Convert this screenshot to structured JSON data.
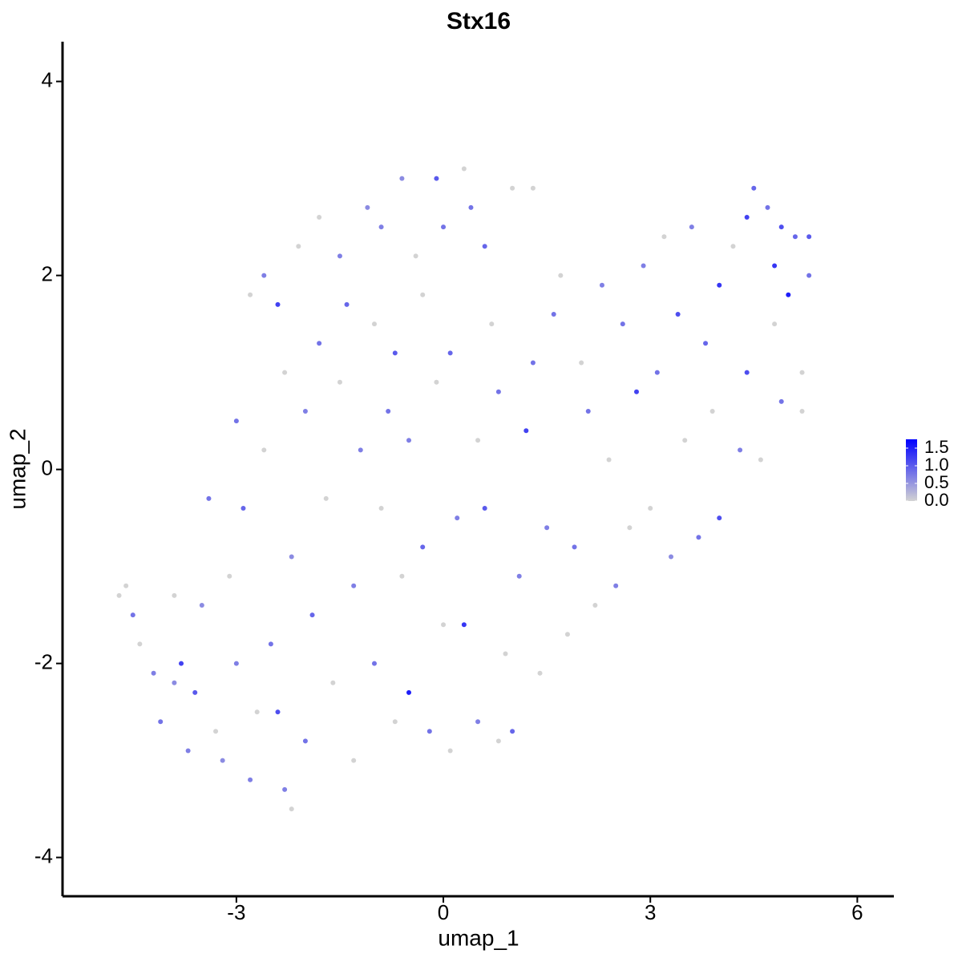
{
  "chart_data": {
    "type": "scatter",
    "title": "Stx16",
    "xlabel": "umap_1",
    "ylabel": "umap_2",
    "xlim": [
      -5.52,
      6.53
    ],
    "ylim": [
      -4.4,
      4.41
    ],
    "xticks": [
      -3,
      0,
      3,
      6
    ],
    "yticks": [
      -4,
      -2,
      0,
      2,
      4
    ],
    "low_color": "#d3d3d3",
    "high_color": "#0000ff",
    "color_lim": [
      0,
      1.75
    ],
    "color_ticks": [
      {
        "value": 0,
        "label": "0.0"
      },
      0.5,
      {
        "value": 1,
        "label": "1.0"
      },
      1.5
    ],
    "x": [
      -4.7,
      -4.6,
      -4.5,
      -4.4,
      -4.2,
      -4.1,
      -3.9,
      -3.8,
      -3.7,
      -3.6,
      -3.5,
      -3.4,
      -3.3,
      -3.2,
      -3.1,
      -3.0,
      -3.0,
      -2.9,
      -2.8,
      -2.8,
      -2.7,
      -2.6,
      -2.6,
      -2.5,
      -2.4,
      -2.4,
      -2.3,
      -2.3,
      -2.2,
      -2.2,
      -2.1,
      -2.0,
      -2.0,
      -1.9,
      -1.8,
      -1.8,
      -1.7,
      -1.6,
      -1.5,
      -1.5,
      -1.4,
      -1.3,
      -1.3,
      -1.2,
      -1.1,
      -1.0,
      -1.0,
      -0.9,
      -0.9,
      -0.8,
      -0.7,
      -0.7,
      -0.6,
      -0.6,
      -0.5,
      -0.5,
      -0.4,
      -0.3,
      -0.3,
      -0.2,
      -0.1,
      -0.1,
      0.0,
      0.0,
      0.1,
      0.1,
      0.2,
      0.3,
      0.3,
      0.4,
      0.5,
      0.5,
      0.6,
      0.6,
      0.7,
      0.8,
      0.8,
      0.9,
      1.0,
      1.0,
      1.1,
      1.2,
      1.3,
      1.4,
      1.5,
      1.6,
      1.7,
      1.8,
      1.9,
      2.0,
      2.1,
      2.2,
      2.3,
      2.4,
      2.5,
      2.6,
      2.7,
      2.8,
      2.9,
      3.0,
      3.1,
      3.2,
      3.3,
      3.4,
      3.5,
      3.6,
      3.7,
      3.8,
      3.9,
      4.0,
      4.0,
      4.2,
      4.3,
      4.4,
      4.4,
      4.5,
      4.6,
      4.7,
      4.8,
      4.8,
      4.9,
      5.0,
      5.1,
      5.2,
      5.3,
      5.2,
      5.3,
      4.9,
      1.3,
      -3.9
    ],
    "y": [
      -1.3,
      -1.2,
      -1.5,
      -1.8,
      -2.1,
      -2.6,
      -2.2,
      -2.0,
      -2.9,
      -2.3,
      -1.4,
      -0.3,
      -2.7,
      -3.0,
      -1.1,
      -2.0,
      0.5,
      -0.4,
      1.8,
      -3.2,
      -2.5,
      2.0,
      0.2,
      -1.8,
      -2.5,
      1.7,
      -3.3,
      1.0,
      -0.9,
      -3.5,
      2.3,
      0.6,
      -2.8,
      -1.5,
      2.6,
      1.3,
      -0.3,
      -2.2,
      0.9,
      2.2,
      1.7,
      -1.2,
      -3.0,
      0.2,
      2.7,
      -2.0,
      1.5,
      -0.4,
      2.5,
      0.6,
      -2.6,
      1.2,
      3.0,
      -1.1,
      -2.3,
      0.3,
      2.2,
      -0.8,
      1.8,
      -2.7,
      3.0,
      0.9,
      -1.6,
      2.5,
      -2.9,
      1.2,
      -0.5,
      -1.6,
      3.1,
      2.7,
      0.3,
      -2.6,
      2.3,
      -0.4,
      1.5,
      -2.8,
      0.8,
      -1.9,
      -2.7,
      2.9,
      -1.1,
      0.4,
      1.1,
      -2.1,
      -0.6,
      1.6,
      2.0,
      -1.7,
      -0.8,
      1.1,
      0.6,
      -1.4,
      1.9,
      0.1,
      -1.2,
      1.5,
      -0.6,
      0.8,
      2.1,
      -0.4,
      1.0,
      2.4,
      -0.9,
      1.6,
      0.3,
      2.5,
      -0.7,
      1.3,
      0.6,
      1.9,
      -0.5,
      2.3,
      0.2,
      1.0,
      2.6,
      2.9,
      0.1,
      2.7,
      1.5,
      2.1,
      0.7,
      1.8,
      2.4,
      1.0,
      2.0,
      0.6,
      2.4,
      2.5,
      2.9,
      -1.3
    ],
    "values": [
      0,
      0,
      0.8,
      0,
      0.7,
      0.8,
      0.6,
      1.2,
      0.7,
      1.0,
      0.6,
      0.8,
      0,
      0.6,
      0,
      0.7,
      0.8,
      0.9,
      0,
      0.7,
      0,
      0.7,
      0,
      0.8,
      1.1,
      1.2,
      0.7,
      0,
      0.6,
      0,
      0,
      0.7,
      0.8,
      0.9,
      0,
      0.8,
      0,
      0,
      0,
      0.7,
      0.9,
      0.7,
      0,
      0.7,
      0.6,
      0.8,
      0,
      0,
      0.7,
      0.8,
      0,
      1.0,
      0.6,
      0,
      1.5,
      0.7,
      0,
      0.9,
      0,
      0.8,
      1.0,
      0,
      0,
      0.8,
      0,
      0.9,
      0.7,
      1.3,
      0,
      0.8,
      0,
      0.7,
      0.9,
      1.0,
      0,
      0,
      0.8,
      0,
      0.9,
      0,
      0.7,
      1.2,
      0.8,
      0,
      0.7,
      0.8,
      0,
      0,
      0.8,
      0,
      0.8,
      0,
      0.7,
      0,
      0.7,
      0.8,
      0,
      1.2,
      0.7,
      0,
      0.8,
      0,
      0.6,
      1.1,
      0,
      0.7,
      0.8,
      0.9,
      0,
      1.3,
      1.1,
      0,
      0.7,
      1.1,
      1.2,
      0.9,
      0,
      0.8,
      0,
      1.3,
      0.8,
      1.5,
      0.9,
      0,
      0.8,
      0,
      1.0,
      1.1,
      0,
      0
    ]
  }
}
